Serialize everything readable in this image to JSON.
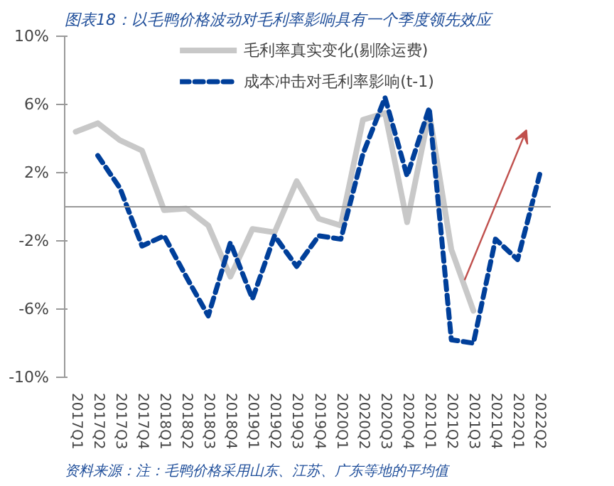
{
  "chart_data": {
    "type": "line",
    "title": "图表18：以毛鸭价格波动对毛利率影响具有一个季度领先效应",
    "categories": [
      "2017Q1",
      "2017Q2",
      "2017Q3",
      "2017Q4",
      "2018Q1",
      "2018Q2",
      "2018Q3",
      "2018Q4",
      "2019Q1",
      "2019Q2",
      "2019Q3",
      "2019Q4",
      "2020Q1",
      "2020Q2",
      "2020Q3",
      "2020Q4",
      "2021Q1",
      "2021Q2",
      "2021Q3",
      "2021Q4",
      "2022Q1",
      "2022Q2"
    ],
    "series": [
      {
        "name": "毛利率真实变化(剔除运费)",
        "color": "#c8c8c8",
        "line_style": "solid",
        "values": [
          4.4,
          4.9,
          3.9,
          3.3,
          -0.2,
          -0.1,
          -1.1,
          -4.1,
          -1.3,
          -1.5,
          1.5,
          -0.7,
          -1.1,
          5.1,
          5.5,
          -0.9,
          5.5,
          -2.5,
          -6.1,
          null,
          null,
          null
        ]
      },
      {
        "name": "成本冲击对毛利率影响(t-1)",
        "color": "#003f9a",
        "line_style": "dashed",
        "values": [
          null,
          3.0,
          1.1,
          -2.3,
          -1.7,
          -4.1,
          -6.4,
          -2.1,
          -5.4,
          -1.7,
          -3.5,
          -1.7,
          -1.9,
          3.1,
          6.4,
          1.8,
          5.8,
          -7.8,
          -8.0,
          -1.9,
          -3.1,
          1.9
        ]
      }
    ],
    "ylim": [
      -10,
      10
    ],
    "yticks": [
      {
        "value": -10,
        "label": "-10%"
      },
      {
        "value": -6,
        "label": "-6%"
      },
      {
        "value": -2,
        "label": "-2%"
      },
      {
        "value": 2,
        "label": "2%"
      },
      {
        "value": 6,
        "label": "6%"
      },
      {
        "value": 10,
        "label": "10%"
      }
    ],
    "grid": false,
    "legend": "top",
    "marker": "none",
    "annotations": [
      "资料来源：注：毛鸭价格采用山东、江苏、广东等地的平均值"
    ]
  }
}
